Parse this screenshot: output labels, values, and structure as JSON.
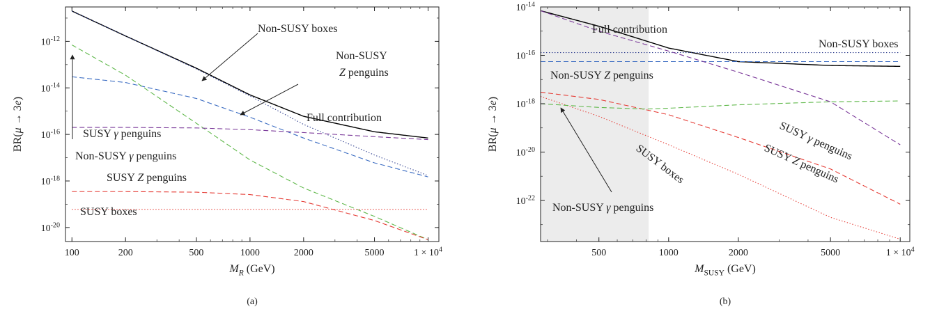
{
  "chart_data": [
    {
      "type": "line",
      "panel_label": "(a)",
      "xlabel": "M_R (GeV)",
      "ylabel": "BR(μ → 3e)",
      "xscale": "log",
      "yscale": "log",
      "xlim": [
        92,
        11500
      ],
      "ylim": [
        2.5e-21,
        3e-11
      ],
      "xticks": [
        100,
        200,
        500,
        1000,
        2000,
        5000,
        10000
      ],
      "xtick_labels": [
        "100",
        "200",
        "500",
        "1000",
        "2000",
        "5000",
        "1 × 10^4"
      ],
      "yticks": [
        1e-20,
        1e-18,
        1e-16,
        1e-14,
        1e-12
      ],
      "ytick_labels": [
        "10^-20",
        "10^-18",
        "10^-16",
        "10^-14",
        "10^-12"
      ],
      "grid": false,
      "series": [
        {
          "name": "Full contribution",
          "color": "#000000",
          "dash": "solid",
          "x": [
            100,
            200,
            500,
            1000,
            2000,
            5000,
            10000
          ],
          "y": [
            2e-11,
            1.7e-12,
            7e-14,
            5e-15,
            6e-16,
            1.3e-16,
            7e-17
          ]
        },
        {
          "name": "Non-SUSY boxes",
          "color": "#2a3a8c",
          "dash": "dotted",
          "x": [
            100,
            200,
            500,
            1000,
            2000,
            5000,
            10000
          ],
          "y": [
            2e-11,
            1.7e-12,
            6.5e-14,
            4.5e-15,
            2.7e-16,
            1.3e-17,
            1.7e-18
          ]
        },
        {
          "name": "Non-SUSY Z penguins",
          "color": "#3b6cc2",
          "dash": "dashed",
          "x": [
            100,
            200,
            500,
            1000,
            2000,
            5000,
            10000
          ],
          "y": [
            3e-14,
            1.7e-14,
            3.5e-15,
            5.5e-16,
            7e-17,
            6e-18,
            1.5e-18
          ]
        },
        {
          "name": "Non-SUSY γ penguins",
          "color": "#5fb84a",
          "dash": "dashed",
          "x": [
            100,
            200,
            500,
            1000,
            2000,
            5000,
            10000
          ],
          "y": [
            7e-13,
            3.5e-14,
            3e-16,
            8e-18,
            5e-19,
            3e-20,
            3e-21
          ]
        },
        {
          "name": "SUSY γ penguins",
          "color": "#7b3a9a",
          "dash": "dashed",
          "x": [
            100,
            200,
            500,
            1000,
            2000,
            5000,
            10000
          ],
          "y": [
            2e-16,
            2e-16,
            1.9e-16,
            1.6e-16,
            1.2e-16,
            8e-17,
            6e-17
          ]
        },
        {
          "name": "SUSY Z penguins",
          "color": "#e53b34",
          "dash": "dashed",
          "x": [
            100,
            200,
            500,
            1000,
            2000,
            5000,
            10000
          ],
          "y": [
            3.5e-19,
            3.5e-19,
            3.3e-19,
            2.6e-19,
            1.3e-19,
            2e-20,
            3e-21
          ]
        },
        {
          "name": "SUSY boxes",
          "color": "#e53b34",
          "dash": "dotted",
          "x": [
            100,
            10000
          ],
          "y": [
            6e-20,
            6e-20
          ]
        }
      ],
      "annotations": [
        {
          "text": "Non-SUSY boxes"
        },
        {
          "text": "Non-SUSY"
        },
        {
          "text": "Z penguins"
        },
        {
          "text": "Full contribution"
        },
        {
          "text": "SUSY γ penguins"
        },
        {
          "text": "Non-SUSY γ penguins"
        },
        {
          "text": "SUSY Z penguins"
        },
        {
          "text": "SUSY boxes"
        }
      ]
    },
    {
      "type": "line",
      "panel_label": "(b)",
      "xlabel": "M_SUSY (GeV)",
      "ylabel": "BR(μ → 3e)",
      "xscale": "log",
      "yscale": "log",
      "xlim": [
        280,
        11000
      ],
      "ylim": [
        2e-24,
        1e-14
      ],
      "xticks": [
        500,
        1000,
        2000,
        5000,
        10000
      ],
      "xtick_labels": [
        "500",
        "1000",
        "2000",
        "5000",
        "1 × 10^4"
      ],
      "yticks": [
        1e-22,
        1e-20,
        1e-18,
        1e-16,
        1e-14
      ],
      "ytick_labels": [
        "10^-22",
        "10^-20",
        "10^-18",
        "10^-16",
        "10^-14"
      ],
      "grid": false,
      "excluded_region": {
        "x_from": 280,
        "x_to": 820
      },
      "series": [
        {
          "name": "Full contribution",
          "color": "#000000",
          "dash": "solid",
          "x": [
            280,
            500,
            1000,
            2000,
            5000,
            10000
          ],
          "y": [
            7e-15,
            1.6e-15,
            2e-16,
            5.5e-17,
            3.8e-17,
            3.5e-17
          ]
        },
        {
          "name": "Non-SUSY boxes",
          "color": "#2a3a8c",
          "dash": "dotted",
          "x": [
            280,
            10000
          ],
          "y": [
            1.3e-16,
            1.3e-16
          ]
        },
        {
          "name": "Non-SUSY Z penguins",
          "color": "#3b6cc2",
          "dash": "dashed",
          "x": [
            280,
            10000
          ],
          "y": [
            5.5e-17,
            5.5e-17
          ]
        },
        {
          "name": "SUSY γ penguins",
          "color": "#7b3a9a",
          "dash": "dashed",
          "x": [
            280,
            500,
            1000,
            2000,
            5000,
            10000
          ],
          "y": [
            7e-15,
            1e-15,
            1.5e-16,
            2e-17,
            1.2e-18,
            2e-20
          ]
        },
        {
          "name": "SUSY Z penguins",
          "color": "#e53b34",
          "dash": "dashed",
          "x": [
            280,
            500,
            1000,
            2000,
            5000,
            10000
          ],
          "y": [
            3e-18,
            1.5e-18,
            3.5e-19,
            4e-20,
            2e-21,
            7e-23
          ]
        },
        {
          "name": "SUSY boxes",
          "color": "#e53b34",
          "dash": "dotted",
          "x": [
            280,
            500,
            1000,
            2000,
            5000,
            10000
          ],
          "y": [
            2e-18,
            3e-19,
            2e-20,
            1.2e-21,
            2e-23,
            2.5e-24
          ]
        },
        {
          "name": "Non-SUSY γ penguins",
          "color": "#5fb84a",
          "dash": "dashed",
          "x": [
            280,
            500,
            800,
            1000,
            2000,
            5000,
            10000
          ],
          "y": [
            1e-18,
            7e-19,
            6e-19,
            6.5e-19,
            9e-19,
            1.2e-18,
            1.3e-18
          ]
        }
      ],
      "annotations": [
        {
          "text": "Full contribution"
        },
        {
          "text": "Non-SUSY boxes"
        },
        {
          "text": "Non-SUSY Z penguins"
        },
        {
          "text": "SUSY γ penguins"
        },
        {
          "text": "SUSY Z penguins"
        },
        {
          "text": "SUSY boxes"
        },
        {
          "text": "Non-SUSY γ penguins"
        }
      ]
    }
  ]
}
